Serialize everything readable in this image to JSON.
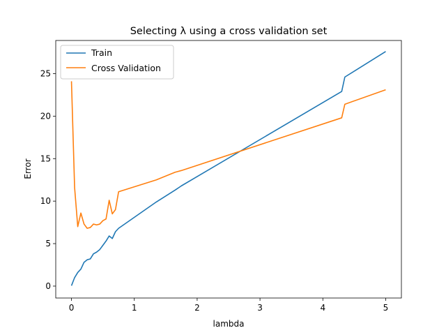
{
  "chart_data": {
    "type": "line",
    "title": "Selecting λ using a cross validation set",
    "xlabel": "lambda",
    "ylabel": "Error",
    "xlim": [
      -0.25,
      5.25
    ],
    "ylim": [
      -1.4,
      28.9
    ],
    "xticks": [
      0,
      1,
      2,
      3,
      4,
      5
    ],
    "yticks": [
      0,
      5,
      10,
      15,
      20,
      25
    ],
    "grid": false,
    "legend_position": "top-left",
    "series": [
      {
        "name": "Train",
        "color": "#1f77b4",
        "points": [
          [
            0,
            0.05
          ],
          [
            0.05,
            1.0
          ],
          [
            0.1,
            1.6
          ],
          [
            0.15,
            2.0
          ],
          [
            0.2,
            2.8
          ],
          [
            0.25,
            3.1
          ],
          [
            0.3,
            3.2
          ],
          [
            0.35,
            3.8
          ],
          [
            0.4,
            4.0
          ],
          [
            0.45,
            4.3
          ],
          [
            0.5,
            4.8
          ],
          [
            0.55,
            5.3
          ],
          [
            0.6,
            5.9
          ],
          [
            0.65,
            5.6
          ],
          [
            0.7,
            6.4
          ],
          [
            0.75,
            6.8
          ],
          [
            1.35,
            9.9
          ],
          [
            1.65,
            11.3
          ],
          [
            1.75,
            11.8
          ],
          [
            4.3,
            22.9
          ],
          [
            4.35,
            24.6
          ],
          [
            5.0,
            27.6
          ]
        ]
      },
      {
        "name": "Cross Validation",
        "color": "#ff7f0e",
        "points": [
          [
            0,
            24.1
          ],
          [
            0.05,
            11.6
          ],
          [
            0.1,
            7.0
          ],
          [
            0.15,
            8.6
          ],
          [
            0.2,
            7.3
          ],
          [
            0.25,
            6.8
          ],
          [
            0.3,
            6.9
          ],
          [
            0.35,
            7.3
          ],
          [
            0.4,
            7.2
          ],
          [
            0.45,
            7.3
          ],
          [
            0.5,
            7.7
          ],
          [
            0.55,
            7.9
          ],
          [
            0.6,
            10.1
          ],
          [
            0.65,
            8.5
          ],
          [
            0.7,
            9.0
          ],
          [
            0.75,
            11.1
          ],
          [
            1.35,
            12.5
          ],
          [
            1.65,
            13.4
          ],
          [
            1.75,
            13.6
          ],
          [
            4.3,
            19.8
          ],
          [
            4.35,
            21.4
          ],
          [
            5.0,
            23.1
          ]
        ]
      }
    ]
  }
}
